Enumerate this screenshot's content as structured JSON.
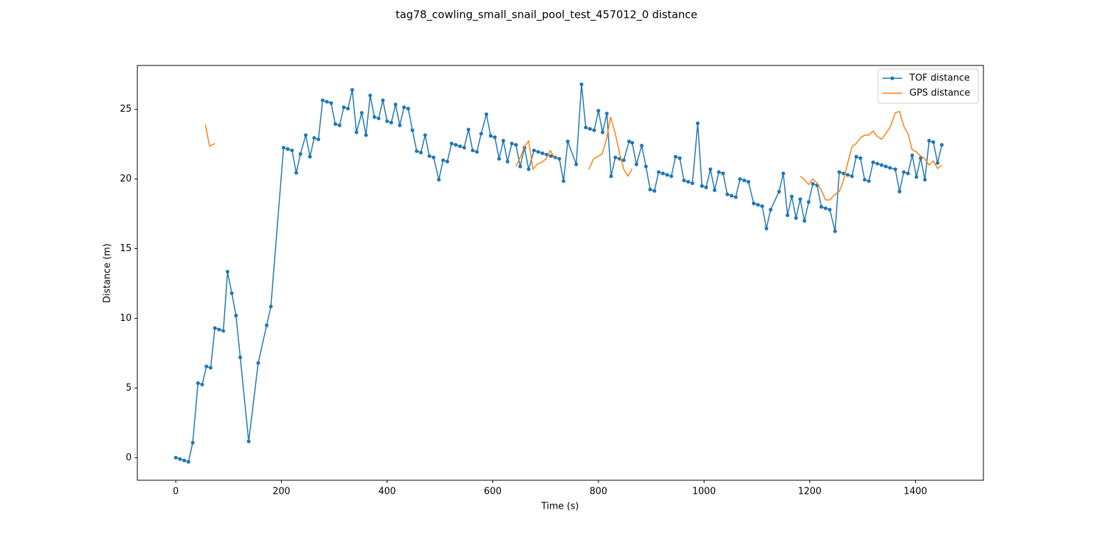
{
  "chart_data": {
    "type": "line",
    "title": "tag78_cowling_small_snail_pool_test_457012_0 distance",
    "x_label": "Time (s)",
    "y_label": "Distance (m)",
    "xlim": [
      -72.8,
      1528.8
    ],
    "ylim": [
      -1.62,
      28.15
    ],
    "xticks": [
      0,
      200,
      400,
      600,
      800,
      1000,
      1200,
      1400
    ],
    "yticks": [
      0,
      5,
      10,
      15,
      20,
      25
    ],
    "legend": "upper right",
    "series": [
      {
        "name": "TOF distance",
        "color": "#1f77b4",
        "marker": true,
        "x": [
          0,
          8,
          16,
          24,
          32,
          42,
          50,
          58,
          66,
          74,
          82,
          90,
          98,
          106,
          114,
          122,
          138,
          156,
          172,
          180,
          204,
          212,
          220,
          228,
          236,
          246,
          254,
          262,
          270,
          278,
          286,
          294,
          302,
          310,
          318,
          326,
          334,
          342,
          352,
          360,
          368,
          376,
          384,
          392,
          400,
          408,
          416,
          424,
          432,
          440,
          448,
          456,
          464,
          472,
          480,
          488,
          498,
          506,
          514,
          522,
          530,
          538,
          546,
          554,
          562,
          570,
          578,
          588,
          596,
          604,
          612,
          620,
          628,
          636,
          644,
          652,
          660,
          668,
          678,
          686,
          694,
          702,
          710,
          718,
          726,
          734,
          742,
          758,
          768,
          776,
          784,
          792,
          800,
          808,
          816,
          824,
          832,
          840,
          848,
          858,
          864,
          872,
          882,
          890,
          898,
          906,
          914,
          922,
          930,
          938,
          946,
          954,
          962,
          970,
          978,
          988,
          996,
          1004,
          1012,
          1020,
          1028,
          1036,
          1044,
          1052,
          1060,
          1068,
          1076,
          1084,
          1094,
          1102,
          1110,
          1118,
          1126,
          1142,
          1150,
          1158,
          1166,
          1174,
          1182,
          1190,
          1198,
          1206,
          1214,
          1222,
          1230,
          1238,
          1248,
          1256,
          1264,
          1272,
          1280,
          1288,
          1296,
          1304,
          1312,
          1320,
          1328,
          1336,
          1344,
          1352,
          1362,
          1370,
          1378,
          1386,
          1394,
          1402,
          1410,
          1418,
          1426,
          1434,
          1442,
          1450
        ],
        "values": [
          0,
          -0.1,
          -0.2,
          -0.3,
          1.07,
          5.35,
          5.25,
          6.55,
          6.45,
          9.3,
          9.2,
          9.1,
          13.35,
          11.8,
          10.2,
          7.2,
          1.17,
          6.8,
          9.5,
          10.85,
          22.25,
          22.15,
          22.05,
          20.45,
          21.8,
          23.15,
          21.6,
          22.95,
          22.85,
          25.65,
          25.55,
          25.45,
          23.95,
          23.85,
          25.15,
          25.05,
          26.4,
          23.35,
          24.75,
          23.15,
          26.0,
          24.45,
          24.35,
          25.65,
          24.15,
          24.05,
          25.35,
          23.85,
          25.15,
          25.05,
          23.5,
          22.0,
          21.9,
          23.15,
          21.65,
          21.55,
          19.95,
          21.35,
          21.25,
          22.55,
          22.45,
          22.35,
          22.25,
          23.55,
          22.05,
          21.95,
          23.25,
          24.65,
          23.1,
          23.0,
          21.45,
          22.75,
          21.25,
          22.55,
          22.45,
          20.9,
          22.25,
          20.7,
          22.05,
          21.95,
          21.85,
          21.75,
          21.65,
          21.55,
          21.45,
          19.85,
          22.7,
          21.05,
          26.8,
          23.7,
          23.6,
          23.5,
          24.9,
          23.35,
          24.7,
          20.2,
          21.55,
          21.45,
          21.35,
          22.7,
          22.6,
          21.05,
          22.4,
          20.9,
          19.25,
          19.15,
          20.5,
          20.4,
          20.3,
          20.2,
          21.6,
          21.5,
          19.9,
          19.8,
          19.7,
          24.0,
          19.5,
          19.4,
          20.7,
          19.2,
          20.5,
          20.4,
          18.9,
          18.8,
          18.7,
          20.0,
          19.9,
          19.8,
          18.25,
          18.15,
          18.05,
          16.45,
          17.8,
          19.1,
          20.4,
          17.4,
          18.75,
          17.2,
          18.55,
          17.0,
          18.35,
          19.65,
          19.55,
          18.0,
          17.9,
          17.8,
          16.25,
          20.5,
          20.4,
          20.3,
          20.2,
          21.6,
          21.5,
          19.95,
          19.85,
          21.2,
          21.1,
          21.0,
          20.9,
          20.8,
          20.7,
          19.1,
          20.5,
          20.4,
          21.7,
          20.15,
          21.5,
          19.95,
          22.75,
          22.65,
          21.15,
          22.45
        ]
      },
      {
        "name": "GPS distance",
        "color": "#ff7f0e",
        "marker": false,
        "x": [
          56,
          64,
          74,
          null,
          644,
          652,
          660,
          668,
          676,
          685,
          693,
          701,
          709,
          718,
          null,
          782,
          791,
          807,
          815,
          823,
          832,
          840,
          848,
          856,
          864,
          null,
          1182,
          1190,
          1198,
          1206,
          1214,
          1222,
          1230,
          1238,
          1248,
          1256,
          1264,
          1272,
          1280,
          1288,
          1296,
          1304,
          1312,
          1320,
          1328,
          1336,
          1344,
          1352,
          1362,
          1370,
          1378,
          1386,
          1394,
          1402,
          1410,
          1418,
          1426,
          1434,
          1442,
          1450
        ],
        "values": [
          23.9,
          22.35,
          22.55,
          null,
          20.9,
          21.55,
          22.3,
          22.75,
          20.7,
          21.1,
          21.2,
          21.45,
          22.05,
          21.45,
          null,
          20.7,
          21.45,
          21.8,
          22.8,
          24.45,
          23.25,
          21.85,
          20.7,
          20.2,
          20.75,
          null,
          20.2,
          19.95,
          19.6,
          20.0,
          19.7,
          19.2,
          18.5,
          18.5,
          18.9,
          19.1,
          19.9,
          21.15,
          22.3,
          22.55,
          22.95,
          23.15,
          23.15,
          23.45,
          23.05,
          22.85,
          23.25,
          23.7,
          24.75,
          24.85,
          23.8,
          23.25,
          22.1,
          21.95,
          21.65,
          21.45,
          21.0,
          21.3,
          20.75,
          21.0
        ]
      }
    ]
  }
}
